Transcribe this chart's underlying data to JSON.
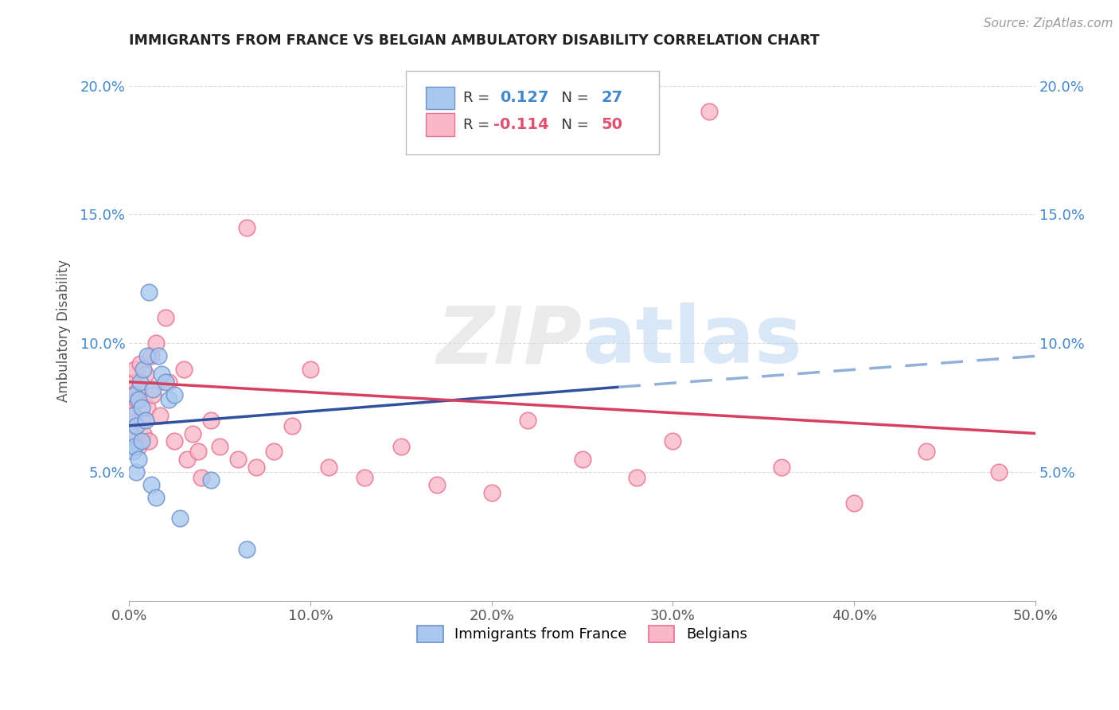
{
  "title": "IMMIGRANTS FROM FRANCE VS BELGIAN AMBULATORY DISABILITY CORRELATION CHART",
  "source": "Source: ZipAtlas.com",
  "ylabel": "Ambulatory Disability",
  "xlim": [
    0.0,
    0.5
  ],
  "ylim": [
    0.0,
    0.21
  ],
  "xticks": [
    0.0,
    0.1,
    0.2,
    0.3,
    0.4,
    0.5
  ],
  "xticklabels": [
    "0.0%",
    "10.0%",
    "20.0%",
    "30.0%",
    "40.0%",
    "50.0%"
  ],
  "yticks": [
    0.0,
    0.05,
    0.1,
    0.15,
    0.2
  ],
  "yticklabels": [
    "",
    "5.0%",
    "10.0%",
    "15.0%",
    "20.0%"
  ],
  "blue_color": "#A8C8F0",
  "pink_color": "#F8B8C8",
  "blue_edge_color": "#7090C8",
  "pink_edge_color": "#E87090",
  "blue_line_color": "#3050A0",
  "pink_line_color": "#D84060",
  "blue_dashed_color": "#90B0D8",
  "grid_color": "#CCCCCC",
  "tick_color": "#4488CC",
  "france_r": 0.127,
  "france_n": 27,
  "belgians_r": -0.114,
  "belgians_n": 50,
  "france_x": [
    0.001,
    0.002,
    0.002,
    0.003,
    0.003,
    0.004,
    0.004,
    0.005,
    0.005,
    0.006,
    0.007,
    0.007,
    0.008,
    0.009,
    0.01,
    0.011,
    0.012,
    0.013,
    0.015,
    0.016,
    0.018,
    0.02,
    0.022,
    0.025,
    0.028,
    0.045,
    0.065
  ],
  "france_y": [
    0.065,
    0.072,
    0.058,
    0.08,
    0.06,
    0.068,
    0.05,
    0.078,
    0.055,
    0.085,
    0.075,
    0.062,
    0.09,
    0.07,
    0.095,
    0.12,
    0.045,
    0.082,
    0.04,
    0.095,
    0.088,
    0.085,
    0.078,
    0.08,
    0.032,
    0.047,
    0.02
  ],
  "belgians_x": [
    0.001,
    0.001,
    0.002,
    0.002,
    0.003,
    0.003,
    0.004,
    0.004,
    0.005,
    0.005,
    0.006,
    0.007,
    0.008,
    0.009,
    0.01,
    0.011,
    0.012,
    0.013,
    0.015,
    0.017,
    0.02,
    0.022,
    0.025,
    0.03,
    0.032,
    0.035,
    0.038,
    0.04,
    0.045,
    0.05,
    0.06,
    0.065,
    0.07,
    0.08,
    0.09,
    0.1,
    0.11,
    0.13,
    0.15,
    0.17,
    0.2,
    0.22,
    0.25,
    0.28,
    0.3,
    0.32,
    0.36,
    0.4,
    0.44,
    0.48
  ],
  "belgians_y": [
    0.08,
    0.075,
    0.072,
    0.065,
    0.085,
    0.09,
    0.078,
    0.068,
    0.082,
    0.06,
    0.092,
    0.07,
    0.065,
    0.088,
    0.075,
    0.062,
    0.095,
    0.08,
    0.1,
    0.072,
    0.11,
    0.085,
    0.062,
    0.09,
    0.055,
    0.065,
    0.058,
    0.048,
    0.07,
    0.06,
    0.055,
    0.145,
    0.052,
    0.058,
    0.068,
    0.09,
    0.052,
    0.048,
    0.06,
    0.045,
    0.042,
    0.07,
    0.055,
    0.048,
    0.062,
    0.19,
    0.052,
    0.038,
    0.058,
    0.05
  ]
}
